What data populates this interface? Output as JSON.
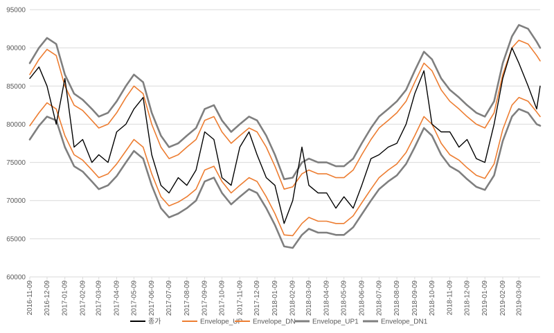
{
  "chart_data": {
    "type": "line",
    "title": "",
    "xlabel": "",
    "ylabel": "",
    "ylim": [
      60000,
      95000
    ],
    "yticks": [
      60000,
      65000,
      70000,
      75000,
      80000,
      85000,
      90000,
      95000
    ],
    "ytick_labels": [
      "60000",
      "65000",
      "70000",
      "75000",
      "80000",
      "85000",
      "90000",
      "95000"
    ],
    "x_start": "2016-11-09",
    "x_end": "2019-04-15",
    "xtick_labels": [
      "2016-11-09",
      "2016-12-09",
      "2017-01-09",
      "2017-02-09",
      "2017-03-09",
      "2017-04-09",
      "2017-05-09",
      "2017-06-09",
      "2017-07-09",
      "2017-08-09",
      "2017-09-09",
      "2017-10-09",
      "2017-11-09",
      "2017-12-09",
      "2018-01-09",
      "2018-02-09",
      "2018-03-09",
      "2018-04-09",
      "2018-05-09",
      "2018-06-09",
      "2018-07-09",
      "2018-08-09",
      "2018-09-09",
      "2018-10-09",
      "2018-11-09",
      "2018-12-09",
      "2019-01-09",
      "2019-02-09",
      "2019-03-09"
    ],
    "grid": "horizontal",
    "legend_position": "bottom",
    "series": [
      {
        "name": "종가",
        "color": "#000000",
        "x": [
          "2016-11-09",
          "2016-11-25",
          "2016-12-09",
          "2016-12-25",
          "2017-01-09",
          "2017-01-25",
          "2017-02-09",
          "2017-02-25",
          "2017-03-09",
          "2017-03-25",
          "2017-04-09",
          "2017-04-25",
          "2017-05-09",
          "2017-05-25",
          "2017-06-09",
          "2017-06-25",
          "2017-07-09",
          "2017-07-25",
          "2017-08-09",
          "2017-08-25",
          "2017-09-09",
          "2017-09-25",
          "2017-10-09",
          "2017-10-25",
          "2017-11-09",
          "2017-11-25",
          "2017-12-09",
          "2017-12-25",
          "2018-01-09",
          "2018-01-25",
          "2018-02-09",
          "2018-02-25",
          "2018-03-09",
          "2018-03-25",
          "2018-04-09",
          "2018-04-25",
          "2018-05-09",
          "2018-05-25",
          "2018-06-09",
          "2018-06-25",
          "2018-07-09",
          "2018-07-25",
          "2018-08-09",
          "2018-08-25",
          "2018-09-09",
          "2018-09-25",
          "2018-10-09",
          "2018-10-25",
          "2018-11-09",
          "2018-11-25",
          "2018-12-09",
          "2018-12-25",
          "2019-01-09",
          "2019-01-25",
          "2019-02-09",
          "2019-02-25",
          "2019-03-09",
          "2019-03-25",
          "2019-04-09",
          "2019-04-15"
        ],
        "values": [
          86000,
          87500,
          85000,
          80000,
          86000,
          77000,
          78000,
          75000,
          76000,
          75000,
          79000,
          80000,
          82000,
          83500,
          76000,
          72000,
          71000,
          73000,
          72000,
          74000,
          79000,
          78000,
          73000,
          72000,
          77000,
          79000,
          76000,
          73000,
          72000,
          67000,
          70000,
          77000,
          72000,
          71000,
          71000,
          69000,
          70500,
          69000,
          72000,
          75500,
          76000,
          77000,
          77500,
          80000,
          84000,
          87000,
          80000,
          79000,
          79000,
          77000,
          78000,
          75500,
          75000,
          80000,
          86000,
          90000,
          88000,
          85000,
          82000,
          85000
        ]
      },
      {
        "name": "Envelope_UP",
        "color": "#ED7D31",
        "x": [
          "2016-11-09",
          "2016-11-25",
          "2016-12-09",
          "2016-12-25",
          "2017-01-09",
          "2017-01-25",
          "2017-02-09",
          "2017-02-25",
          "2017-03-09",
          "2017-03-25",
          "2017-04-09",
          "2017-04-25",
          "2017-05-09",
          "2017-05-25",
          "2017-06-09",
          "2017-06-25",
          "2017-07-09",
          "2017-07-25",
          "2017-08-09",
          "2017-08-25",
          "2017-09-09",
          "2017-09-25",
          "2017-10-09",
          "2017-10-25",
          "2017-11-09",
          "2017-11-25",
          "2017-12-09",
          "2017-12-25",
          "2018-01-09",
          "2018-01-25",
          "2018-02-09",
          "2018-02-25",
          "2018-03-09",
          "2018-03-25",
          "2018-04-09",
          "2018-04-25",
          "2018-05-09",
          "2018-05-25",
          "2018-06-09",
          "2018-06-25",
          "2018-07-09",
          "2018-07-25",
          "2018-08-09",
          "2018-08-25",
          "2018-09-09",
          "2018-09-25",
          "2018-10-09",
          "2018-10-25",
          "2018-11-09",
          "2018-11-25",
          "2018-12-09",
          "2018-12-25",
          "2019-01-09",
          "2019-01-25",
          "2019-02-09",
          "2019-02-25",
          "2019-03-09",
          "2019-03-25",
          "2019-04-09",
          "2019-04-15"
        ],
        "values": [
          86500,
          88500,
          89800,
          89000,
          85000,
          82500,
          81800,
          80500,
          79500,
          80000,
          81500,
          83500,
          85000,
          84000,
          80000,
          77000,
          75500,
          76000,
          77000,
          78000,
          80500,
          81000,
          79000,
          77500,
          78500,
          79500,
          79000,
          77000,
          74500,
          71500,
          71800,
          73500,
          74000,
          73500,
          73500,
          73000,
          73000,
          74000,
          76000,
          78000,
          79500,
          80500,
          81500,
          83000,
          85500,
          88000,
          87000,
          84500,
          83000,
          82000,
          81000,
          80000,
          79500,
          81500,
          86500,
          90000,
          91000,
          90500,
          89000,
          88300
        ]
      },
      {
        "name": "Envelope_DN",
        "color": "#ED7D31",
        "x": [
          "2016-11-09",
          "2016-11-25",
          "2016-12-09",
          "2016-12-25",
          "2017-01-09",
          "2017-01-25",
          "2017-02-09",
          "2017-02-25",
          "2017-03-09",
          "2017-03-25",
          "2017-04-09",
          "2017-04-25",
          "2017-05-09",
          "2017-05-25",
          "2017-06-09",
          "2017-06-25",
          "2017-07-09",
          "2017-07-25",
          "2017-08-09",
          "2017-08-25",
          "2017-09-09",
          "2017-09-25",
          "2017-10-09",
          "2017-10-25",
          "2017-11-09",
          "2017-11-25",
          "2017-12-09",
          "2017-12-25",
          "2018-01-09",
          "2018-01-25",
          "2018-02-09",
          "2018-02-25",
          "2018-03-09",
          "2018-03-25",
          "2018-04-09",
          "2018-04-25",
          "2018-05-09",
          "2018-05-25",
          "2018-06-09",
          "2018-06-25",
          "2018-07-09",
          "2018-07-25",
          "2018-08-09",
          "2018-08-25",
          "2018-09-09",
          "2018-09-25",
          "2018-10-09",
          "2018-10-25",
          "2018-11-09",
          "2018-11-25",
          "2018-12-09",
          "2018-12-25",
          "2019-01-09",
          "2019-01-25",
          "2019-02-09",
          "2019-02-25",
          "2019-03-09",
          "2019-03-25",
          "2019-04-09",
          "2019-04-15"
        ],
        "values": [
          79800,
          81500,
          82800,
          82000,
          78500,
          76000,
          75300,
          74000,
          73000,
          73500,
          74800,
          76500,
          78000,
          77000,
          73500,
          70500,
          69300,
          69800,
          70500,
          71500,
          74000,
          74500,
          72500,
          71000,
          72000,
          73000,
          72500,
          70500,
          68300,
          65500,
          65400,
          67000,
          67800,
          67300,
          67300,
          67000,
          67000,
          68000,
          69700,
          71500,
          73000,
          74000,
          74800,
          76300,
          78500,
          81000,
          80000,
          77500,
          76000,
          75300,
          74300,
          73300,
          72900,
          74800,
          79300,
          82500,
          83500,
          83000,
          81600,
          81000
        ]
      },
      {
        "name": "Envelope_UP1",
        "color": "#7F7F7F",
        "x": [
          "2016-11-09",
          "2016-11-25",
          "2016-12-09",
          "2016-12-25",
          "2017-01-09",
          "2017-01-25",
          "2017-02-09",
          "2017-02-25",
          "2017-03-09",
          "2017-03-25",
          "2017-04-09",
          "2017-04-25",
          "2017-05-09",
          "2017-05-25",
          "2017-06-09",
          "2017-06-25",
          "2017-07-09",
          "2017-07-25",
          "2017-08-09",
          "2017-08-25",
          "2017-09-09",
          "2017-09-25",
          "2017-10-09",
          "2017-10-25",
          "2017-11-09",
          "2017-11-25",
          "2017-12-09",
          "2017-12-25",
          "2018-01-09",
          "2018-01-25",
          "2018-02-09",
          "2018-02-25",
          "2018-03-09",
          "2018-03-25",
          "2018-04-09",
          "2018-04-25",
          "2018-05-09",
          "2018-05-25",
          "2018-06-09",
          "2018-06-25",
          "2018-07-09",
          "2018-07-25",
          "2018-08-09",
          "2018-08-25",
          "2018-09-09",
          "2018-09-25",
          "2018-10-09",
          "2018-10-25",
          "2018-11-09",
          "2018-11-25",
          "2018-12-09",
          "2018-12-25",
          "2019-01-09",
          "2019-01-25",
          "2019-02-09",
          "2019-02-25",
          "2019-03-09",
          "2019-03-25",
          "2019-04-09",
          "2019-04-15"
        ],
        "values": [
          88000,
          90000,
          91300,
          90500,
          86500,
          84000,
          83200,
          82000,
          81000,
          81500,
          83000,
          85000,
          86500,
          85500,
          81500,
          78500,
          77000,
          77500,
          78500,
          79500,
          82000,
          82500,
          80500,
          79000,
          80000,
          81000,
          80500,
          78500,
          76000,
          72800,
          73000,
          75000,
          75500,
          75000,
          75000,
          74500,
          74500,
          75500,
          77500,
          79500,
          81000,
          82000,
          83000,
          84500,
          87000,
          89500,
          88500,
          86000,
          84500,
          83500,
          82500,
          81500,
          81000,
          83000,
          88000,
          91500,
          93000,
          92500,
          90800,
          90000
        ]
      },
      {
        "name": "Envelope_DN1",
        "color": "#7F7F7F",
        "x": [
          "2016-11-09",
          "2016-11-25",
          "2016-12-09",
          "2016-12-25",
          "2017-01-09",
          "2017-01-25",
          "2017-02-09",
          "2017-02-25",
          "2017-03-09",
          "2017-03-25",
          "2017-04-09",
          "2017-04-25",
          "2017-05-09",
          "2017-05-25",
          "2017-06-09",
          "2017-06-25",
          "2017-07-09",
          "2017-07-25",
          "2017-08-09",
          "2017-08-25",
          "2017-09-09",
          "2017-09-25",
          "2017-10-09",
          "2017-10-25",
          "2017-11-09",
          "2017-11-25",
          "2017-12-09",
          "2017-12-25",
          "2018-01-09",
          "2018-01-25",
          "2018-02-09",
          "2018-02-25",
          "2018-03-09",
          "2018-03-25",
          "2018-04-09",
          "2018-04-25",
          "2018-05-09",
          "2018-05-25",
          "2018-06-09",
          "2018-06-25",
          "2018-07-09",
          "2018-07-25",
          "2018-08-09",
          "2018-08-25",
          "2018-09-09",
          "2018-09-25",
          "2018-10-09",
          "2018-10-25",
          "2018-11-09",
          "2018-11-25",
          "2018-12-09",
          "2018-12-25",
          "2019-01-09",
          "2019-01-25",
          "2019-02-09",
          "2019-02-25",
          "2019-03-09",
          "2019-03-25",
          "2019-04-09",
          "2019-04-15"
        ],
        "values": [
          78000,
          79800,
          81000,
          80500,
          77000,
          74500,
          73800,
          72500,
          71500,
          72000,
          73200,
          75000,
          76500,
          75500,
          72000,
          69000,
          67800,
          68300,
          69000,
          70000,
          72500,
          73000,
          71000,
          69500,
          70500,
          71500,
          71000,
          69000,
          66800,
          64000,
          63800,
          65500,
          66300,
          65800,
          65800,
          65500,
          65500,
          66500,
          68200,
          70000,
          71500,
          72500,
          73300,
          74800,
          77000,
          79500,
          78500,
          76000,
          74500,
          73800,
          72800,
          71800,
          71400,
          73300,
          77800,
          81000,
          82000,
          81500,
          80000,
          79800
        ]
      }
    ]
  }
}
